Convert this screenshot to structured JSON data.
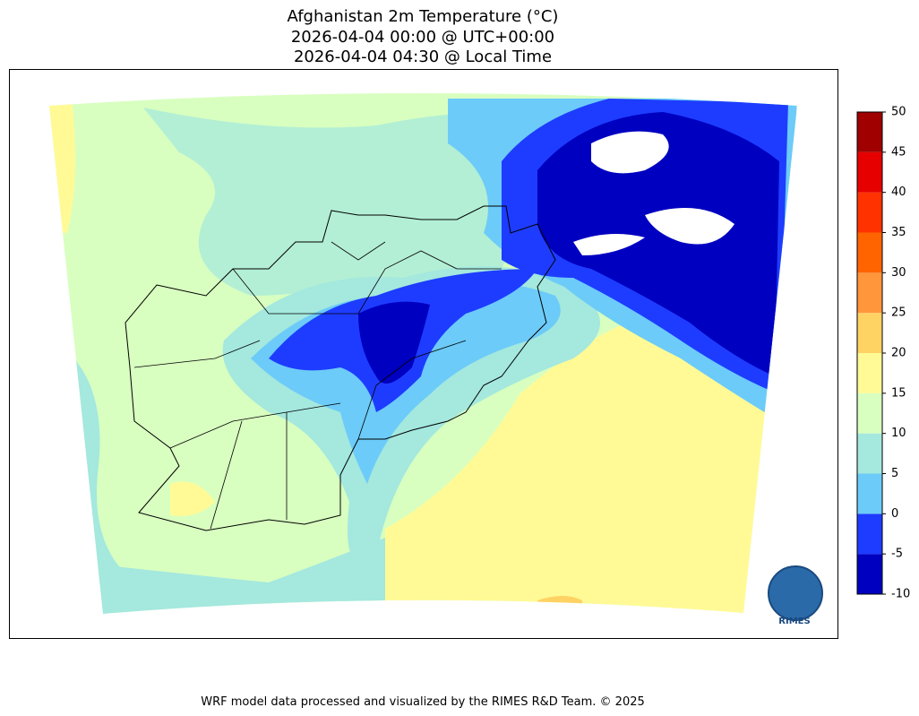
{
  "title": [
    "Afghanistan 2m Temperature (°C)",
    "2026-04-04 00:00 @ UTC+00:00",
    "2026-04-04 04:30 @ Local Time"
  ],
  "colorbar": {
    "range": [
      -10,
      50
    ],
    "ticks": [
      -10,
      -5,
      0,
      5,
      10,
      15,
      20,
      25,
      30,
      35,
      40,
      45,
      50
    ],
    "colors": [
      "#0000c0",
      "#1e3cff",
      "#6ccbf8",
      "#a4e8de",
      "#d8ffc0",
      "#fffa96",
      "#ffd264",
      "#ff963c",
      "#ff6400",
      "#ff3200",
      "#e60000",
      "#a00000"
    ]
  },
  "logo": "RIMES",
  "footer": "WRF model data processed and visualized by the RIMES R&D Team. © 2025"
}
